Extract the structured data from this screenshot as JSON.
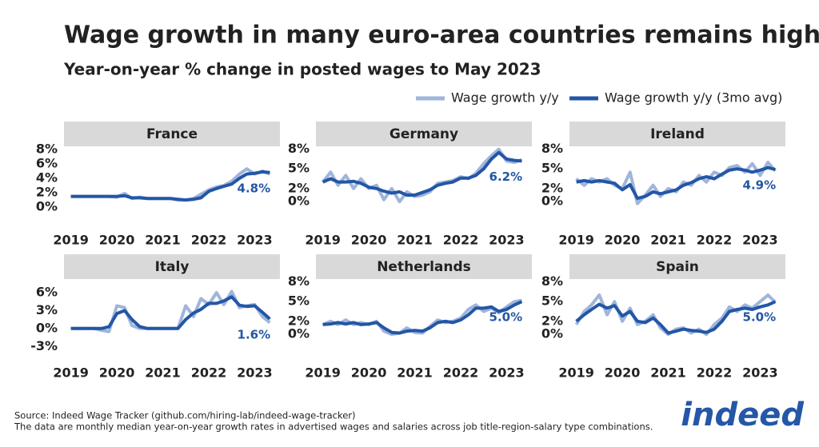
{
  "title": "Wage growth in many euro-area countries remains high",
  "subtitle": "Year-on-year % change in posted wages to May 2023",
  "legend_position": "top-right",
  "source": "Source: Indeed Wage Tracker (github.com/hiring-lab/indeed-wage-tracker)",
  "note": "The data are monthly median year-on-year growth rates in advertised wages and salaries across job title-region-salary type combinations.",
  "logo": "indeed",
  "chart_data": [
    {
      "type": "line",
      "title": "France",
      "grid": false,
      "x": [
        2019,
        2019.17,
        2019.33,
        2019.5,
        2019.67,
        2019.83,
        2020,
        2020.17,
        2020.33,
        2020.5,
        2020.67,
        2020.83,
        2021,
        2021.17,
        2021.33,
        2021.5,
        2021.67,
        2021.83,
        2022,
        2022.17,
        2022.33,
        2022.5,
        2022.67,
        2022.83,
        2023,
        2023.17,
        2023.33
      ],
      "xlim": [
        2018.85,
        2023.55
      ],
      "xticks": [
        2019,
        2020,
        2021,
        2022,
        2023
      ],
      "ylim": [
        -2.3,
        8.2
      ],
      "yticks": [
        {
          "value": 0,
          "label": "0%"
        },
        {
          "value": 2,
          "label": "2%"
        },
        {
          "value": 4,
          "label": "4%"
        },
        {
          "value": 6,
          "label": "6%"
        },
        {
          "value": 8,
          "label": "8%"
        }
      ],
      "series": [
        {
          "name": "Wage growth y/y",
          "color": "#9fb5dc",
          "values": [
            1.5,
            1.5,
            1.5,
            1.5,
            1.5,
            1.5,
            1.4,
            1.9,
            1.2,
            1.4,
            1.2,
            1.2,
            1.2,
            1.2,
            1.0,
            1.0,
            1.2,
            1.8,
            2.4,
            2.8,
            3.0,
            3.6,
            4.6,
            5.3,
            4.6,
            5.0,
            4.6
          ]
        },
        {
          "name": "Wage growth y/y (3mo avg)",
          "color": "#2356a6",
          "values": [
            1.5,
            1.5,
            1.5,
            1.5,
            1.5,
            1.5,
            1.5,
            1.6,
            1.3,
            1.3,
            1.2,
            1.2,
            1.2,
            1.2,
            1.1,
            1.0,
            1.1,
            1.3,
            2.2,
            2.6,
            2.9,
            3.2,
            4.0,
            4.6,
            4.7,
            4.9,
            4.8
          ],
          "value_labels": [
            null,
            null,
            null,
            null,
            null,
            null,
            null,
            null,
            null,
            null,
            null,
            null,
            null,
            null,
            null,
            null,
            null,
            null,
            null,
            null,
            null,
            null,
            null,
            null,
            null,
            null,
            "4.8%"
          ]
        }
      ]
    },
    {
      "type": "line",
      "title": "Germany",
      "grid": false,
      "x": [
        2019,
        2019.17,
        2019.33,
        2019.5,
        2019.67,
        2019.83,
        2020,
        2020.17,
        2020.33,
        2020.5,
        2020.67,
        2020.83,
        2021,
        2021.17,
        2021.33,
        2021.5,
        2021.67,
        2021.83,
        2022,
        2022.17,
        2022.33,
        2022.5,
        2022.67,
        2022.83,
        2023,
        2023.17,
        2023.33
      ],
      "xlim": [
        2018.85,
        2023.55
      ],
      "xticks": [
        2019,
        2020,
        2021,
        2022,
        2023
      ],
      "ylim": [
        -3.4,
        8.2
      ],
      "yticks": [
        {
          "value": 0,
          "label": "0%"
        },
        {
          "value": 2,
          "label": "2%"
        },
        {
          "value": 5,
          "label": "5%"
        },
        {
          "value": 8,
          "label": "8%"
        }
      ],
      "series": [
        {
          "name": "Wage growth y/y",
          "color": "#9fb5dc",
          "values": [
            3.0,
            4.5,
            2.5,
            4.0,
            2.0,
            3.5,
            2.0,
            2.5,
            0.3,
            2.0,
            0.0,
            1.5,
            0.8,
            1.0,
            1.5,
            2.8,
            3.0,
            3.2,
            3.8,
            3.5,
            4.3,
            5.8,
            7.0,
            8.0,
            6.2,
            6.0,
            6.4
          ]
        },
        {
          "name": "Wage growth y/y (3mo avg)",
          "color": "#2356a6",
          "values": [
            3.0,
            3.5,
            3.0,
            3.0,
            3.1,
            2.8,
            2.2,
            2.0,
            1.6,
            1.3,
            1.5,
            1.0,
            1.0,
            1.4,
            1.8,
            2.5,
            2.8,
            3.0,
            3.6,
            3.6,
            4.0,
            5.0,
            6.5,
            7.5,
            6.5,
            6.3,
            6.2
          ],
          "value_labels": [
            null,
            null,
            null,
            null,
            null,
            null,
            null,
            null,
            null,
            null,
            null,
            null,
            null,
            null,
            null,
            null,
            null,
            null,
            null,
            null,
            null,
            null,
            null,
            null,
            null,
            null,
            "6.2%"
          ]
        }
      ]
    },
    {
      "type": "line",
      "title": "Ireland",
      "grid": false,
      "x": [
        2019,
        2019.17,
        2019.33,
        2019.5,
        2019.67,
        2019.83,
        2020,
        2020.17,
        2020.33,
        2020.5,
        2020.67,
        2020.83,
        2021,
        2021.17,
        2021.33,
        2021.5,
        2021.67,
        2021.83,
        2022,
        2022.17,
        2022.33,
        2022.5,
        2022.67,
        2022.83,
        2023,
        2023.17,
        2023.33
      ],
      "xlim": [
        2018.85,
        2023.55
      ],
      "xticks": [
        2019,
        2020,
        2021,
        2022,
        2023
      ],
      "ylim": [
        -3.4,
        8.2
      ],
      "yticks": [
        {
          "value": 0,
          "label": "0%"
        },
        {
          "value": 2,
          "label": "2%"
        },
        {
          "value": 5,
          "label": "5%"
        },
        {
          "value": 8,
          "label": "8%"
        }
      ],
      "series": [
        {
          "name": "Wage growth y/y",
          "color": "#9fb5dc",
          "values": [
            3.5,
            2.5,
            3.5,
            3.0,
            3.5,
            2.5,
            2.0,
            4.5,
            -0.3,
            1.0,
            2.5,
            0.8,
            2.0,
            1.5,
            3.0,
            2.5,
            4.0,
            3.0,
            4.5,
            4.0,
            5.2,
            5.5,
            4.5,
            5.8,
            4.0,
            6.0,
            4.7
          ]
        },
        {
          "name": "Wage growth y/y (3mo avg)",
          "color": "#2356a6",
          "values": [
            3.0,
            3.2,
            3.0,
            3.2,
            3.0,
            2.8,
            1.8,
            2.6,
            0.5,
            0.8,
            1.5,
            1.2,
            1.5,
            1.8,
            2.5,
            2.9,
            3.5,
            3.8,
            3.5,
            4.2,
            4.8,
            5.0,
            4.8,
            4.5,
            4.8,
            5.2,
            4.9
          ],
          "value_labels": [
            null,
            null,
            null,
            null,
            null,
            null,
            null,
            null,
            null,
            null,
            null,
            null,
            null,
            null,
            null,
            null,
            null,
            null,
            null,
            null,
            null,
            null,
            null,
            null,
            null,
            null,
            "4.9%"
          ]
        }
      ]
    },
    {
      "type": "line",
      "title": "Italy",
      "grid": false,
      "x": [
        2019,
        2019.17,
        2019.33,
        2019.5,
        2019.67,
        2019.83,
        2020,
        2020.17,
        2020.33,
        2020.5,
        2020.67,
        2020.83,
        2021,
        2021.17,
        2021.33,
        2021.5,
        2021.67,
        2021.83,
        2022,
        2022.17,
        2022.33,
        2022.5,
        2022.67,
        2022.83,
        2023,
        2023.17,
        2023.33
      ],
      "xlim": [
        2018.85,
        2023.55
      ],
      "xticks": [
        2019,
        2020,
        2021,
        2022,
        2023
      ],
      "ylim": [
        -4.7,
        8.0
      ],
      "yticks": [
        {
          "value": -3,
          "label": "-3%"
        },
        {
          "value": 0,
          "label": "0%"
        },
        {
          "value": 3,
          "label": "3%"
        },
        {
          "value": 6,
          "label": "6%"
        }
      ],
      "series": [
        {
          "name": "Wage growth y/y",
          "color": "#9fb5dc",
          "values": [
            0,
            0,
            0,
            0,
            -0.3,
            -0.5,
            3.8,
            3.5,
            0.5,
            0,
            0,
            0,
            0,
            0,
            0,
            3.8,
            2.0,
            5.0,
            4.0,
            6.0,
            4.0,
            6.2,
            3.5,
            3.8,
            4.0,
            2.0,
            1.0
          ]
        },
        {
          "name": "Wage growth y/y (3mo avg)",
          "color": "#2356a6",
          "values": [
            0,
            0,
            0,
            0,
            0,
            0.3,
            2.5,
            3.0,
            1.5,
            0.3,
            0,
            0,
            0,
            0,
            0,
            1.5,
            2.6,
            3.2,
            4.2,
            4.2,
            4.6,
            5.3,
            3.9,
            3.7,
            3.8,
            2.7,
            1.6
          ],
          "value_labels": [
            null,
            null,
            null,
            null,
            null,
            null,
            null,
            null,
            null,
            null,
            null,
            null,
            null,
            null,
            null,
            null,
            null,
            null,
            null,
            null,
            null,
            null,
            null,
            null,
            null,
            null,
            "1.6%"
          ]
        }
      ]
    },
    {
      "type": "line",
      "title": "Netherlands",
      "grid": false,
      "x": [
        2019,
        2019.17,
        2019.33,
        2019.5,
        2019.67,
        2019.83,
        2020,
        2020.17,
        2020.33,
        2020.5,
        2020.67,
        2020.83,
        2021,
        2021.17,
        2021.33,
        2021.5,
        2021.67,
        2021.83,
        2022,
        2022.17,
        2022.33,
        2022.5,
        2022.67,
        2022.83,
        2023,
        2023.17,
        2023.33
      ],
      "xlim": [
        2018.85,
        2023.55
      ],
      "xticks": [
        2019,
        2020,
        2021,
        2022,
        2023
      ],
      "ylim": [
        -3.4,
        8.2
      ],
      "yticks": [
        {
          "value": 0,
          "label": "0%"
        },
        {
          "value": 2,
          "label": "2%"
        },
        {
          "value": 5,
          "label": "5%"
        },
        {
          "value": 8,
          "label": "8%"
        }
      ],
      "series": [
        {
          "name": "Wage growth y/y",
          "color": "#9fb5dc",
          "values": [
            1.5,
            2.0,
            1.5,
            2.2,
            1.5,
            1.8,
            1.5,
            2.0,
            0.5,
            0.0,
            0.2,
            1.0,
            0.3,
            0.2,
            1.2,
            2.2,
            1.8,
            2.0,
            2.5,
            3.8,
            4.5,
            3.5,
            4.0,
            3.3,
            4.2,
            5.0,
            5.2
          ]
        },
        {
          "name": "Wage growth y/y (3mo avg)",
          "color": "#2356a6",
          "values": [
            1.5,
            1.6,
            1.8,
            1.6,
            1.8,
            1.5,
            1.6,
            1.8,
            1.0,
            0.3,
            0.2,
            0.5,
            0.6,
            0.5,
            1.0,
            1.8,
            2.0,
            1.8,
            2.2,
            3.0,
            4.0,
            4.0,
            4.2,
            3.5,
            3.8,
            4.5,
            5.0
          ],
          "value_labels": [
            null,
            null,
            null,
            null,
            null,
            null,
            null,
            null,
            null,
            null,
            null,
            null,
            null,
            null,
            null,
            null,
            null,
            null,
            null,
            null,
            null,
            null,
            null,
            null,
            null,
            null,
            "5.0%"
          ]
        }
      ]
    },
    {
      "type": "line",
      "title": "Spain",
      "grid": false,
      "x": [
        2019,
        2019.17,
        2019.33,
        2019.5,
        2019.67,
        2019.83,
        2020,
        2020.17,
        2020.33,
        2020.5,
        2020.67,
        2020.83,
        2021,
        2021.17,
        2021.33,
        2021.5,
        2021.67,
        2021.83,
        2022,
        2022.17,
        2022.33,
        2022.5,
        2022.67,
        2022.83,
        2023,
        2023.17,
        2023.33
      ],
      "xlim": [
        2018.85,
        2023.55
      ],
      "xticks": [
        2019,
        2020,
        2021,
        2022,
        2023
      ],
      "ylim": [
        -3.4,
        8.2
      ],
      "yticks": [
        {
          "value": 0,
          "label": "0%"
        },
        {
          "value": 2,
          "label": "2%"
        },
        {
          "value": 5,
          "label": "5%"
        },
        {
          "value": 8,
          "label": "8%"
        }
      ],
      "series": [
        {
          "name": "Wage growth y/y",
          "color": "#9fb5dc",
          "values": [
            1.5,
            3.5,
            4.5,
            6.0,
            3.0,
            5.0,
            2.0,
            4.0,
            1.5,
            2.0,
            3.0,
            1.0,
            0.0,
            0.8,
            1.0,
            0.2,
            0.8,
            0.0,
            1.5,
            2.5,
            4.2,
            3.5,
            4.5,
            4.0,
            5.0,
            6.0,
            4.9
          ]
        },
        {
          "name": "Wage growth y/y (3mo avg)",
          "color": "#2356a6",
          "values": [
            2.0,
            3.0,
            3.8,
            4.6,
            4.0,
            4.4,
            2.8,
            3.5,
            2.0,
            1.8,
            2.5,
            1.5,
            0.2,
            0.5,
            0.8,
            0.6,
            0.5,
            0.3,
            0.8,
            2.0,
            3.5,
            3.8,
            4.0,
            3.8,
            4.2,
            4.5,
            5.0
          ],
          "value_labels": [
            null,
            null,
            null,
            null,
            null,
            null,
            null,
            null,
            null,
            null,
            null,
            null,
            null,
            null,
            null,
            null,
            null,
            null,
            null,
            null,
            null,
            null,
            null,
            null,
            null,
            null,
            "5.0%"
          ]
        }
      ]
    }
  ]
}
